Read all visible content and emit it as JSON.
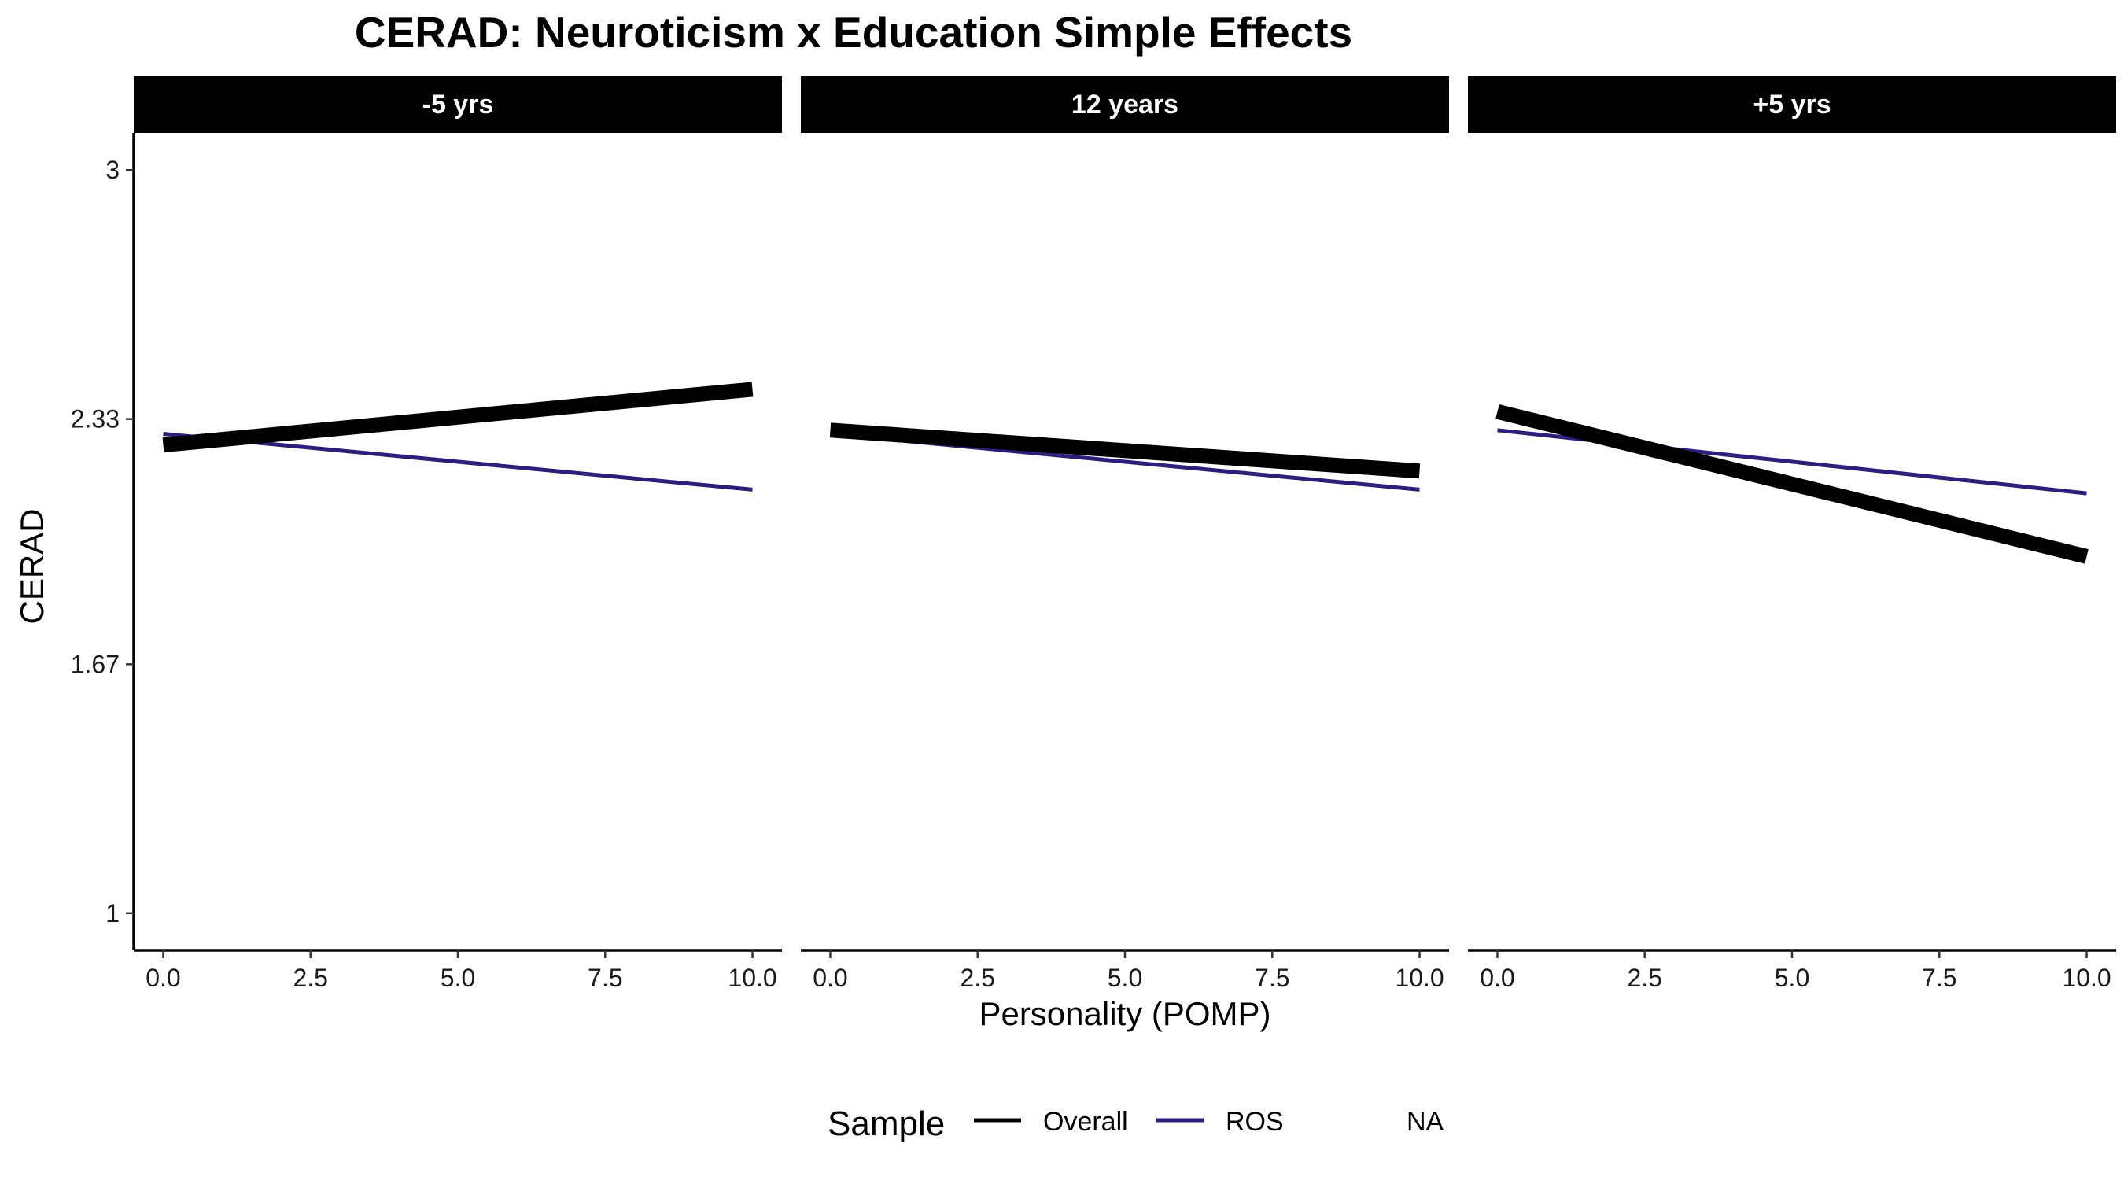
{
  "chart_data": {
    "type": "line",
    "title": "CERAD: Neuroticism x Education Simple Effects",
    "xlabel": "Personality (POMP)",
    "ylabel": "CERAD",
    "xlim": [
      -0.5,
      10.5
    ],
    "ylim": [
      0.9,
      3.1
    ],
    "x_ticks": [
      0,
      2.5,
      5,
      7.5,
      10
    ],
    "x_tick_labels": [
      "0.0",
      "2.5",
      "5.0",
      "7.5",
      "10.0"
    ],
    "y_ticks": [
      1,
      1.67,
      2.33,
      3
    ],
    "y_tick_labels": [
      "1",
      "1.67",
      "2.33",
      "3"
    ],
    "grid": false,
    "legend": {
      "title": "Sample",
      "placement": "bottom",
      "entries": [
        {
          "label": "Overall",
          "color": "#000000"
        },
        {
          "label": "ROS",
          "color": "#2d1e7a"
        },
        {
          "label": "NA",
          "color": null
        }
      ]
    },
    "panels": [
      {
        "label": "-5 yrs",
        "series": [
          {
            "name": "Overall",
            "x": [
              0,
              10
            ],
            "y": [
              2.26,
              2.41
            ]
          },
          {
            "name": "ROS",
            "x": [
              0,
              10
            ],
            "y": [
              2.29,
              2.14
            ]
          }
        ]
      },
      {
        "label": "12 years",
        "series": [
          {
            "name": "Overall",
            "x": [
              0,
              10
            ],
            "y": [
              2.3,
              2.19
            ]
          },
          {
            "name": "ROS",
            "x": [
              0,
              10
            ],
            "y": [
              2.29,
              2.14
            ]
          }
        ]
      },
      {
        "label": "+5 yrs",
        "series": [
          {
            "name": "Overall",
            "x": [
              0,
              10
            ],
            "y": [
              2.35,
              1.96
            ]
          },
          {
            "name": "ROS",
            "x": [
              0,
              10
            ],
            "y": [
              2.3,
              2.13
            ]
          }
        ]
      }
    ]
  },
  "colors": {
    "Overall": "#000000",
    "ROS": "#2d1e7a",
    "strip_background": "#000000",
    "strip_text": "#ffffff"
  }
}
